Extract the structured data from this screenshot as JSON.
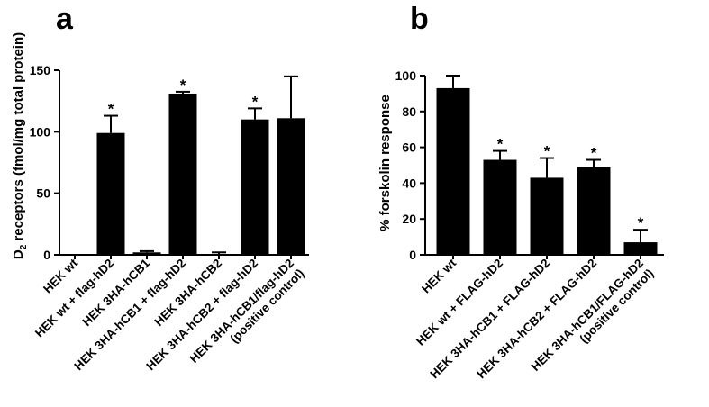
{
  "chart_data": [
    {
      "type": "bar",
      "panel": "a",
      "ylabel_main": "D",
      "ylabel_sub": "2",
      "ylabel_rest": " receptors (fmol/mg total protein)",
      "ylim": [
        0,
        150
      ],
      "yticks": [
        0,
        50,
        100,
        150
      ],
      "categories": [
        [
          "HEK wt"
        ],
        [
          "HEK wt + flag-hD2"
        ],
        [
          "HEK 3HA-hCB1"
        ],
        [
          "HEK 3HA-hCB1 + flag-hD2"
        ],
        [
          "HEK 3HA-hCB2"
        ],
        [
          "HEK 3HA-hCB2 + flag-hD2"
        ],
        [
          "HEK 3HA-hCB1/flag-hD2",
          "(positive control)"
        ]
      ],
      "values": [
        0,
        99,
        2,
        131,
        0.5,
        110,
        111
      ],
      "errors": [
        0,
        14,
        1,
        1.5,
        1.5,
        9,
        34
      ],
      "significant": [
        false,
        true,
        false,
        true,
        false,
        true,
        false
      ],
      "significance_marker": "*",
      "bar_color": "#000000"
    },
    {
      "type": "bar",
      "panel": "b",
      "ylabel": "% forskolin response",
      "ylim": [
        0,
        100
      ],
      "yticks": [
        0,
        20,
        40,
        60,
        80,
        100
      ],
      "categories": [
        [
          "HEK wt"
        ],
        [
          "HEK wt + FLAG-hD2"
        ],
        [
          "HEK 3HA-hCB1 + FLAG-hD2"
        ],
        [
          "HEK 3HA-hCB2 + FLAG-hD2"
        ],
        [
          "HEK 3HA-hCB1/FLAG-hD2",
          "(positive control)"
        ]
      ],
      "values": [
        93,
        53,
        43,
        49,
        7
      ],
      "errors": [
        7,
        5,
        11,
        4,
        7
      ],
      "significant": [
        false,
        true,
        true,
        true,
        true
      ],
      "significance_marker": "*",
      "bar_color": "#000000"
    }
  ]
}
